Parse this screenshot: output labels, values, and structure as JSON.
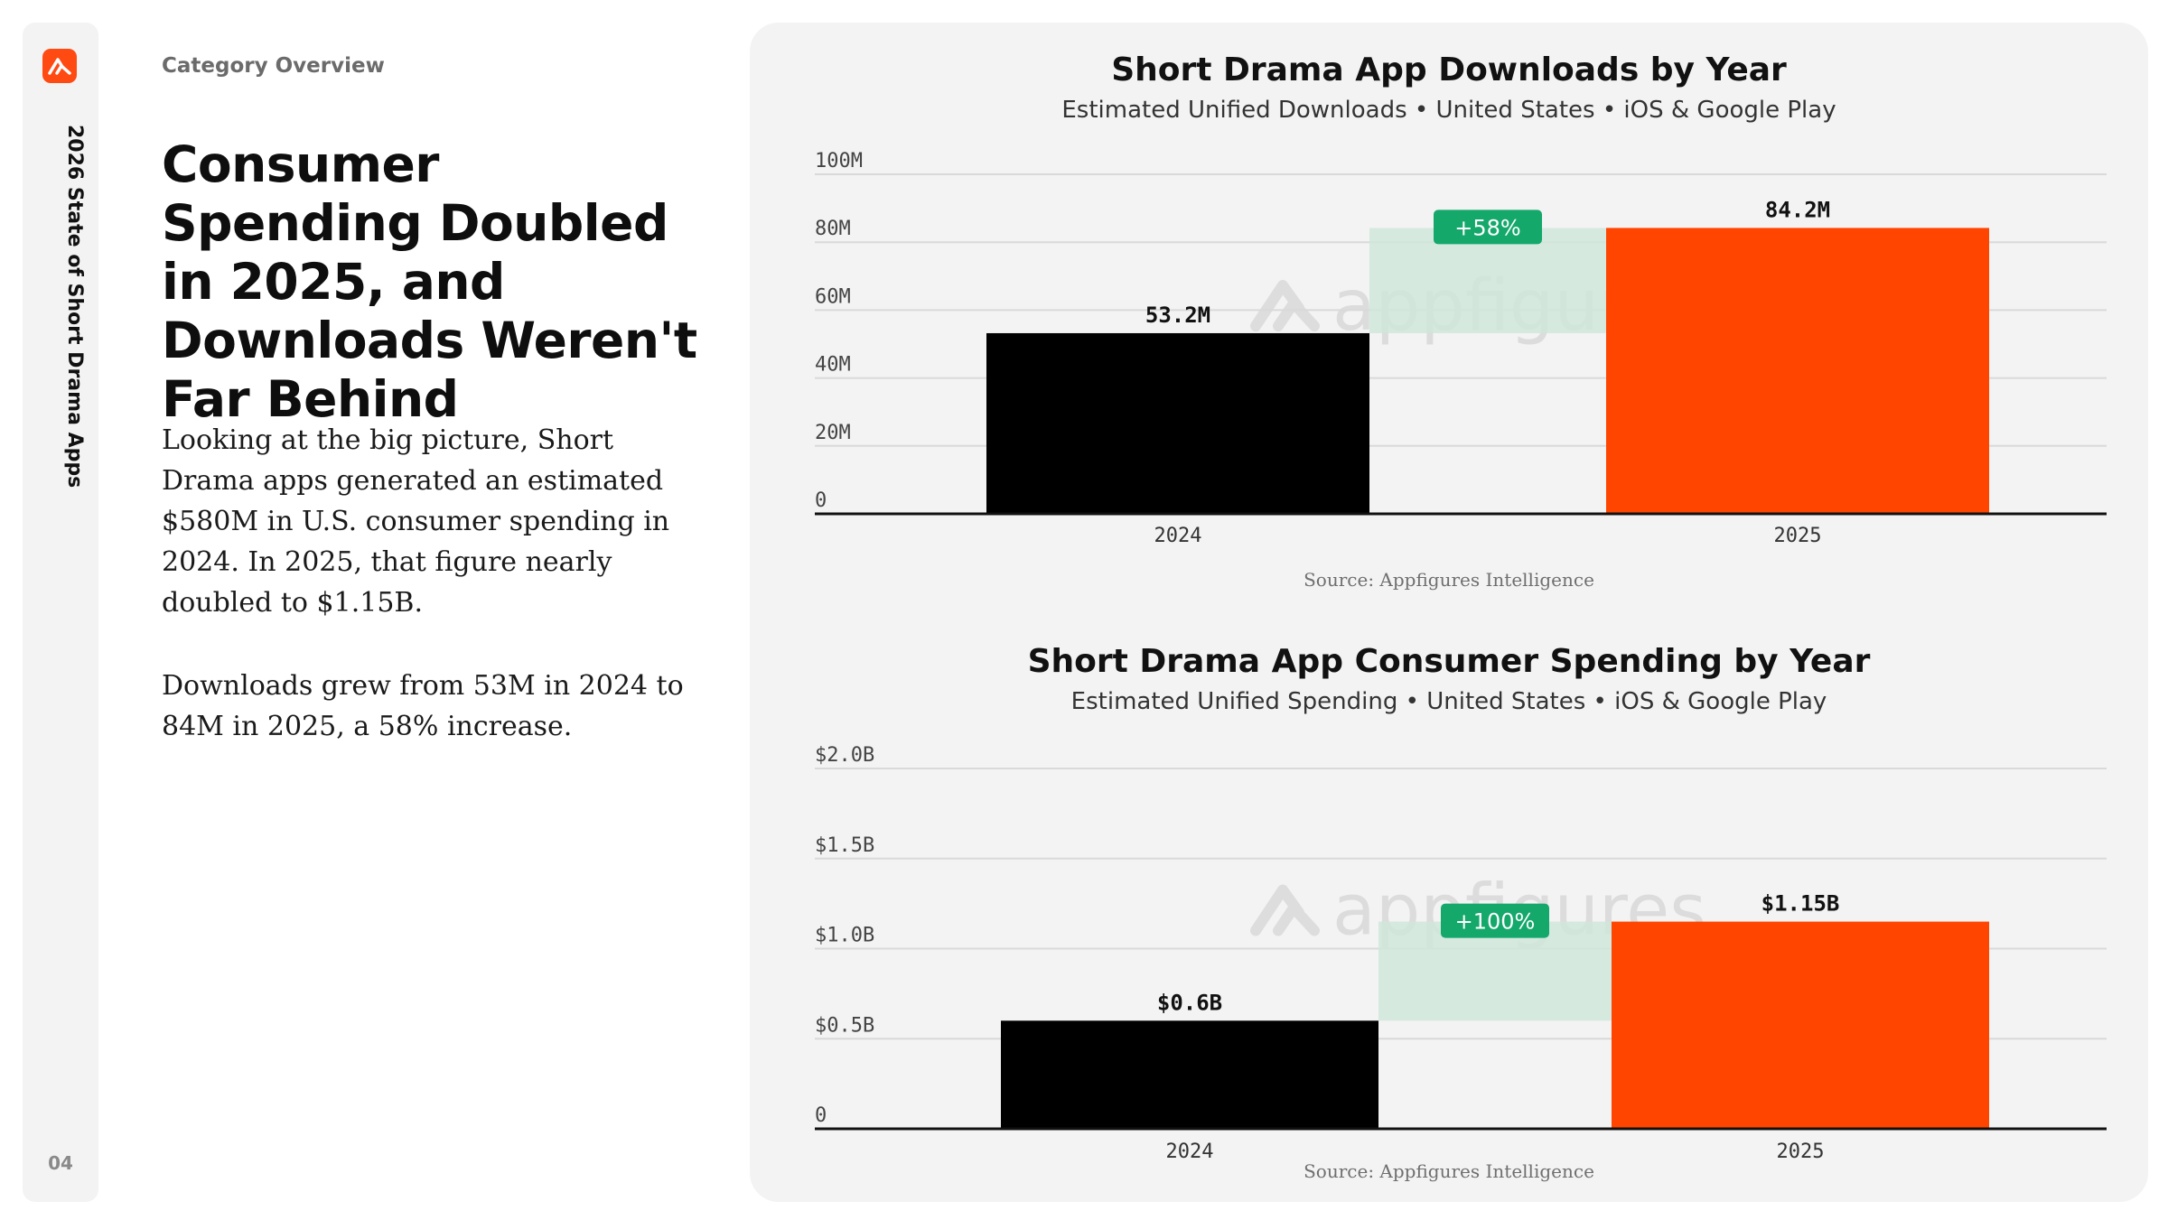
{
  "rail": {
    "title": "2026 State of Short Drama Apps",
    "page_number": "04",
    "logo_icon": "appfigures-logo-icon"
  },
  "left": {
    "eyebrow": "Category Overview",
    "headline": "Consumer Spending Doubled in 2025, and Downloads Weren't Far Behind",
    "paragraph1": "Looking at the big picture, Short Drama apps generated an estimated $580M in U.S. consumer spending in 2024. In 2025, that figure nearly doubled to $1.15B.",
    "paragraph2": "Downloads grew from 53M in 2024 to 84M in 2025, a 58% increase."
  },
  "colors": {
    "bar_2024": "#000000",
    "bar_2025": "#ff4500",
    "growth_badge": "#14a86b",
    "growth_band": "#cfe6da",
    "accent": "#ff4a12"
  },
  "watermark": "appfigures",
  "chart_data": [
    {
      "type": "bar",
      "title": "Short Drama App Downloads by Year",
      "subtitle": "Estimated Unified Downloads • United States • iOS & Google Play",
      "categories": [
        "2024",
        "2025"
      ],
      "values": [
        53.2,
        84.2
      ],
      "value_labels": [
        "53.2M",
        "84.2M"
      ],
      "ylim": [
        0,
        100
      ],
      "yticks": [
        0,
        20,
        40,
        60,
        80,
        100
      ],
      "ytick_labels": [
        "0",
        "20M",
        "40M",
        "60M",
        "80M",
        "100M"
      ],
      "growth_label": "+58%",
      "grid": true,
      "source": "Source: Appfigures Intelligence"
    },
    {
      "type": "bar",
      "title": "Short Drama App Consumer Spending by Year",
      "subtitle": "Estimated Unified Spending • United States • iOS & Google Play",
      "categories": [
        "2024",
        "2025"
      ],
      "values": [
        0.6,
        1.15
      ],
      "value_labels": [
        "$0.6B",
        "$1.15B"
      ],
      "ylim": [
        0,
        2.0
      ],
      "yticks": [
        0,
        0.5,
        1.0,
        1.5,
        2.0
      ],
      "ytick_labels": [
        "0",
        "$0.5B",
        "$1.0B",
        "$1.5B",
        "$2.0B"
      ],
      "growth_label": "+100%",
      "grid": true,
      "source": "Source: Appfigures Intelligence"
    }
  ]
}
